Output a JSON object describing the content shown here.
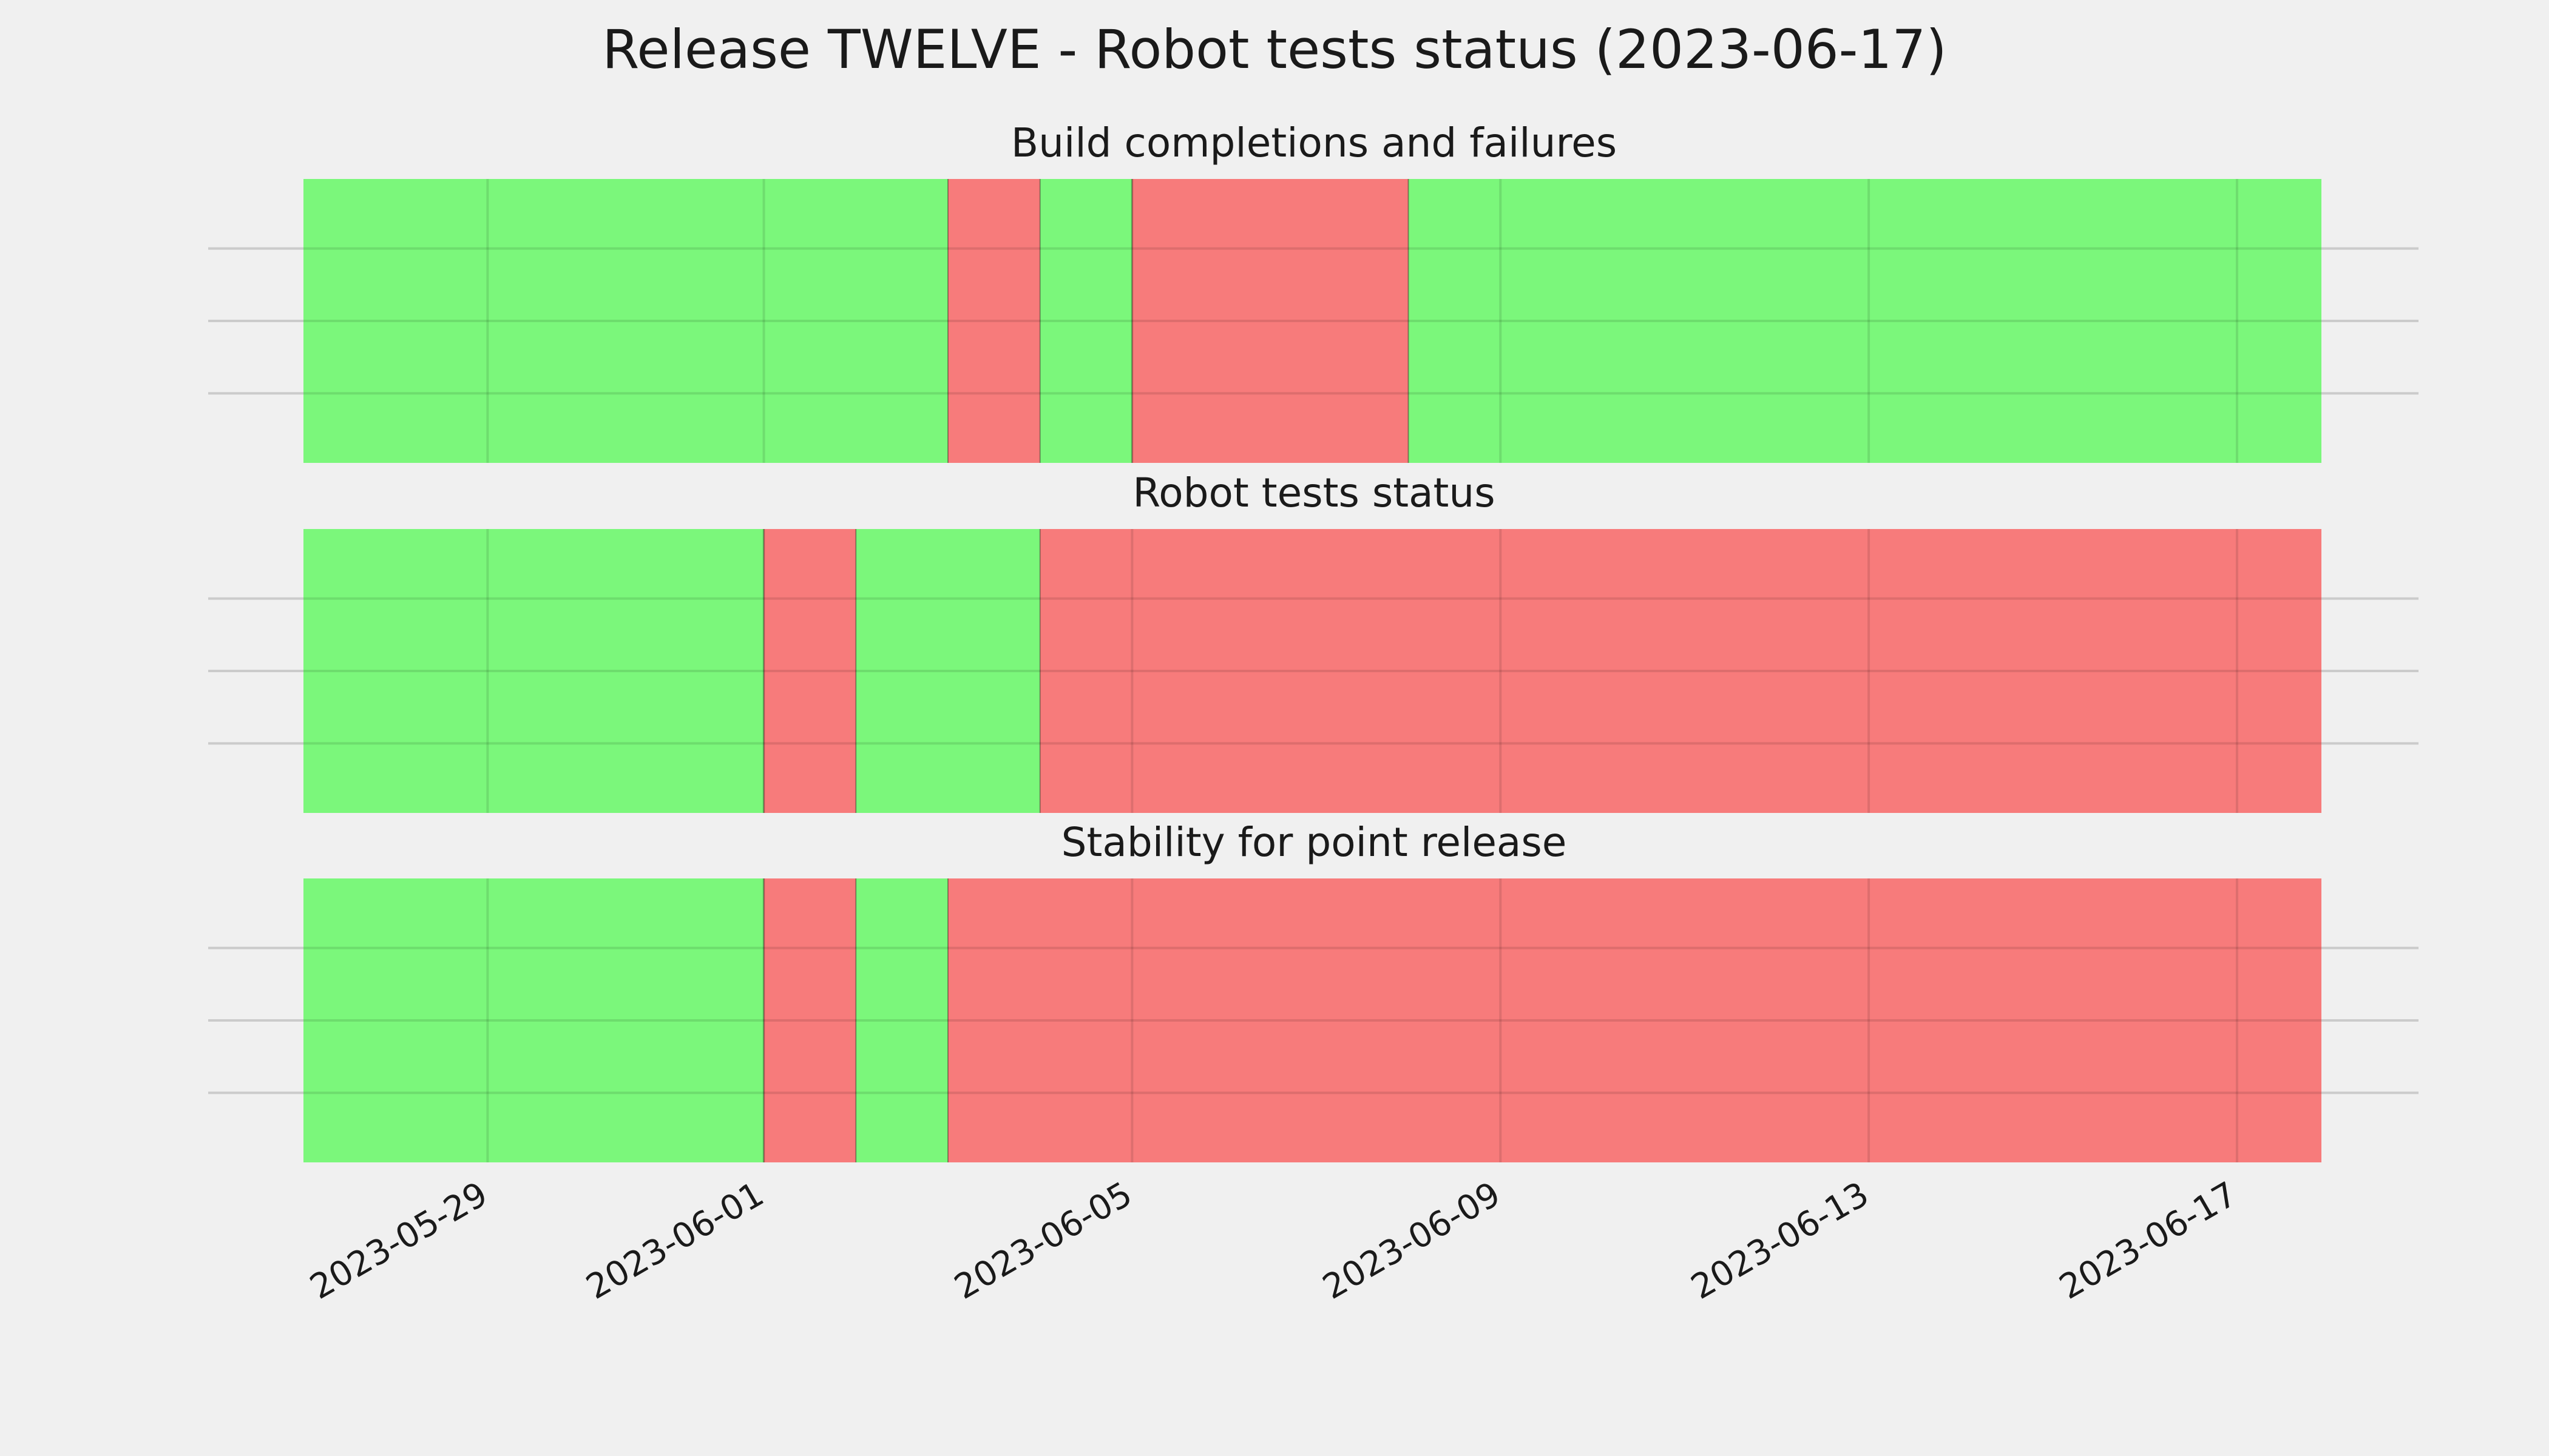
{
  "chart_data": {
    "type": "timeline",
    "title": "Release TWELVE - Robot tests status (2023-06-17)",
    "x_range": [
      "2023-05-27",
      "2023-06-17T22:00"
    ],
    "x_ticks": [
      "2023-05-29",
      "2023-06-01",
      "2023-06-05",
      "2023-06-09",
      "2023-06-13",
      "2023-06-17"
    ],
    "grid": true,
    "colors": {
      "pass": "#77f777",
      "fail": "#f77777",
      "background": "#f0f0f0",
      "grid": "#cbcbcb"
    },
    "panels": [
      {
        "title": "Build completions and failures",
        "segments": [
          {
            "start": "2023-05-27",
            "end": "2023-06-03",
            "status": "pass"
          },
          {
            "start": "2023-06-03",
            "end": "2023-06-04",
            "status": "fail"
          },
          {
            "start": "2023-06-04",
            "end": "2023-06-05",
            "status": "pass"
          },
          {
            "start": "2023-06-05",
            "end": "2023-06-08",
            "status": "fail"
          },
          {
            "start": "2023-06-08",
            "end": "2023-06-17T22:00",
            "status": "pass"
          }
        ]
      },
      {
        "title": "Robot tests status",
        "segments": [
          {
            "start": "2023-05-27",
            "end": "2023-06-01",
            "status": "pass"
          },
          {
            "start": "2023-06-01",
            "end": "2023-06-02",
            "status": "fail"
          },
          {
            "start": "2023-06-02",
            "end": "2023-06-04",
            "status": "pass"
          },
          {
            "start": "2023-06-04",
            "end": "2023-06-17T22:00",
            "status": "fail"
          }
        ]
      },
      {
        "title": "Stability for point release",
        "segments": [
          {
            "start": "2023-05-27",
            "end": "2023-06-01",
            "status": "pass"
          },
          {
            "start": "2023-06-01",
            "end": "2023-06-02",
            "status": "fail"
          },
          {
            "start": "2023-06-02",
            "end": "2023-06-03",
            "status": "pass"
          },
          {
            "start": "2023-06-03",
            "end": "2023-06-17T22:00",
            "status": "fail"
          }
        ]
      }
    ]
  }
}
